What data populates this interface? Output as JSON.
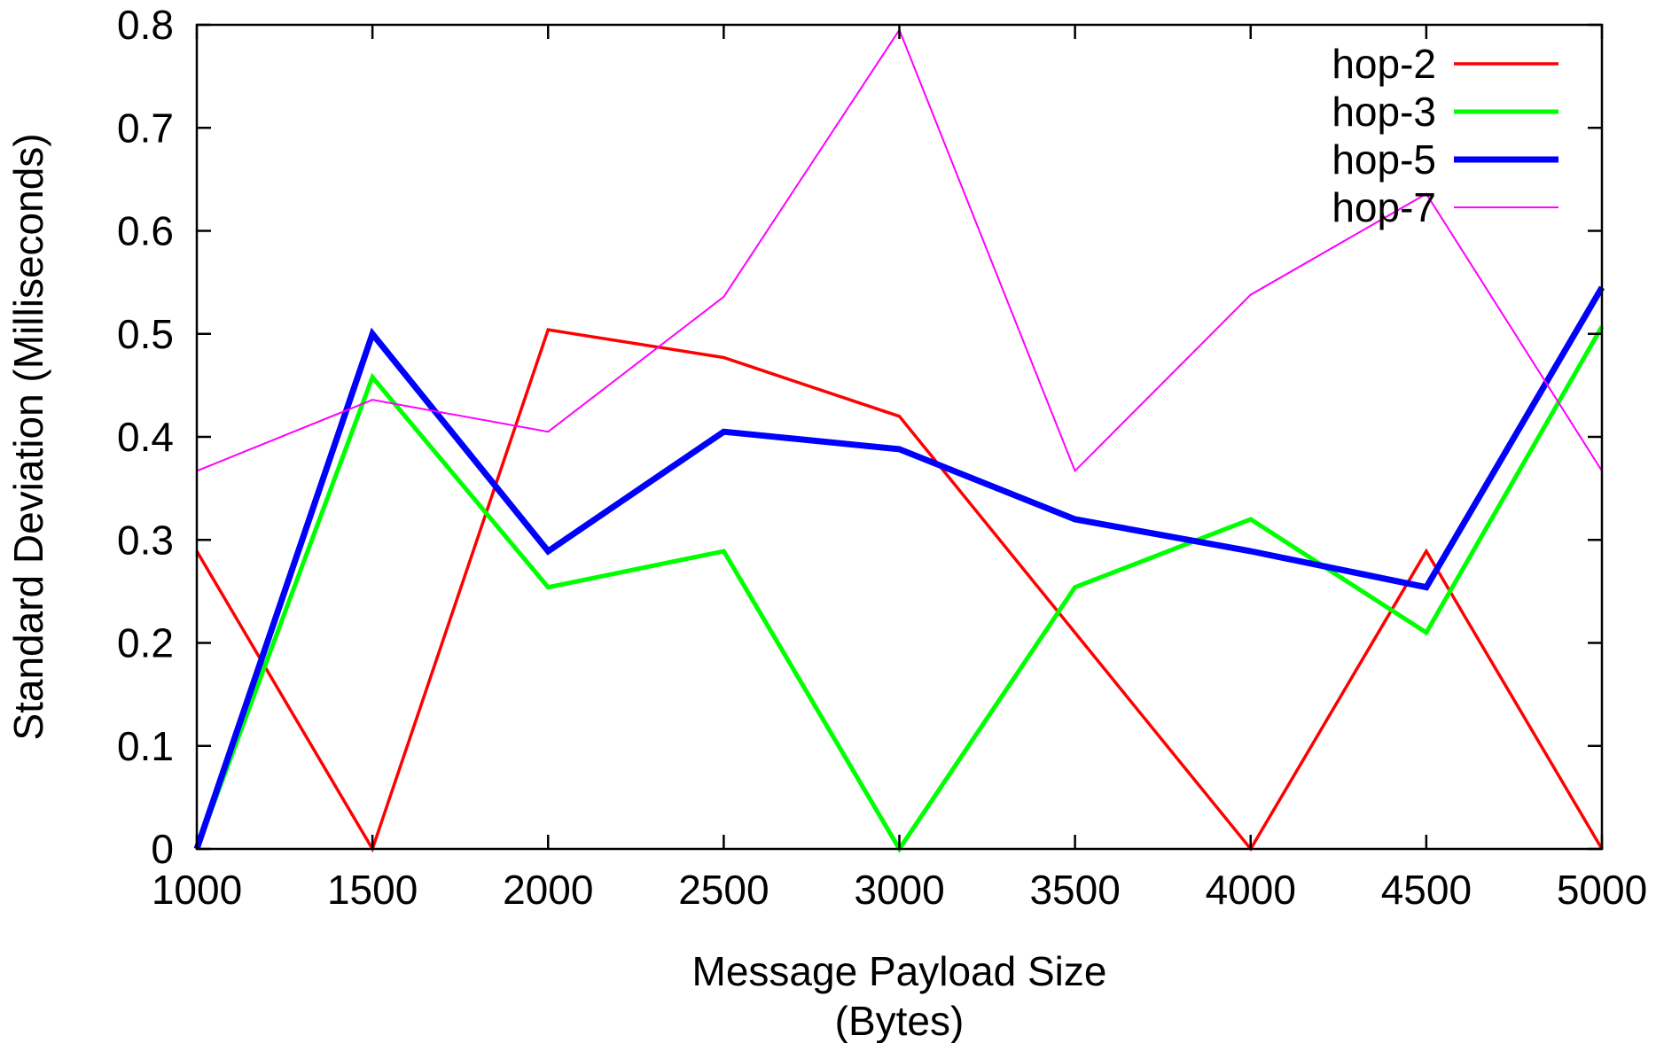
{
  "chart_data": {
    "type": "line",
    "title": "",
    "xlabel_line1": "Message Payload Size",
    "xlabel_line2": "(Bytes)",
    "ylabel": "Standard Deviation (Milliseconds)",
    "xlim": [
      1000,
      5000
    ],
    "ylim": [
      0,
      0.8
    ],
    "x_ticks": [
      "1000",
      "1500",
      "2000",
      "2500",
      "3000",
      "3500",
      "4000",
      "4500",
      "5000"
    ],
    "y_ticks": [
      "0",
      "0.1",
      "0.2",
      "0.3",
      "0.4",
      "0.5",
      "0.6",
      "0.7",
      "0.8"
    ],
    "x": [
      1000,
      1500,
      2000,
      2500,
      3000,
      3500,
      4000,
      4500,
      5000
    ],
    "grid": false,
    "legend_position": "top-right",
    "series": [
      {
        "name": "hop-2",
        "color": "#ff0000",
        "line_weight": "medium",
        "values": [
          0.289,
          0.0,
          0.504,
          0.477,
          0.42,
          0.21,
          0.0,
          0.289,
          0.0
        ]
      },
      {
        "name": "hop-3",
        "color": "#00ff00",
        "line_weight": "thick",
        "values": [
          0.0,
          0.458,
          0.254,
          0.289,
          0.0,
          0.254,
          0.32,
          0.21,
          0.507
        ]
      },
      {
        "name": "hop-5",
        "color": "#0000ff",
        "line_weight": "heavy",
        "values": [
          0.0,
          0.5,
          0.289,
          0.405,
          0.388,
          0.32,
          0.289,
          0.254,
          0.545
        ]
      },
      {
        "name": "hop-7",
        "color": "#ff00ff",
        "line_weight": "thin",
        "values": [
          0.367,
          0.436,
          0.405,
          0.536,
          0.795,
          0.367,
          0.538,
          0.636,
          0.367
        ]
      }
    ]
  }
}
